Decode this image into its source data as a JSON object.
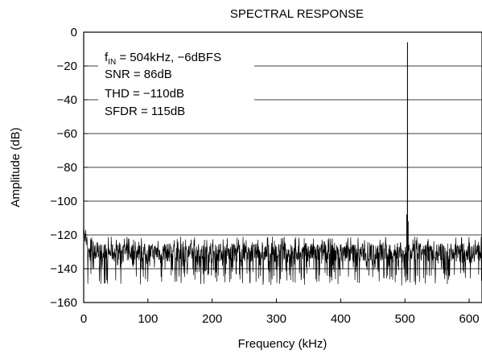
{
  "chart_data": {
    "type": "line",
    "title": "SPECTRAL RESPONSE",
    "xlabel": "Frequency (kHz)",
    "ylabel": "Amplitude (dB)",
    "xlim": [
      0,
      620
    ],
    "ylim": [
      -160,
      0
    ],
    "x_ticks": [
      0,
      100,
      200,
      300,
      400,
      500,
      600
    ],
    "y_ticks": [
      0,
      -20,
      -40,
      -60,
      -80,
      -100,
      -120,
      -140,
      -160
    ],
    "x_tick_labels": [
      "0",
      "100",
      "200",
      "300",
      "400",
      "500",
      "600"
    ],
    "y_tick_labels": [
      "0",
      "−20",
      "−40",
      "−60",
      "−80",
      "−100",
      "−120",
      "−140",
      "−160"
    ],
    "grid": "horizontal",
    "annotation": {
      "line1_f": "f",
      "line1_sub": "IN",
      "line1_rest": " = 504kHz, −6dBFS",
      "line2": "SNR = 86dB",
      "line3": "THD = −110dB",
      "line4": "SFDR = 115dB"
    },
    "series": [
      {
        "color": "#000000",
        "noise_floor": {
          "from_khz": 0,
          "to_khz": 620,
          "mean_db": -130,
          "upper_db": -121,
          "lower_db": -150
        },
        "dc_region": {
          "x": [
            0,
            1,
            2,
            3,
            4,
            5,
            6
          ],
          "y": [
            -115,
            -119,
            -124,
            -117,
            -126,
            -121,
            -127
          ]
        },
        "peaks": [
          {
            "x": 504,
            "y": -6
          },
          {
            "x": 503,
            "y": -108
          },
          {
            "x": 505,
            "y": -112
          }
        ]
      }
    ]
  }
}
